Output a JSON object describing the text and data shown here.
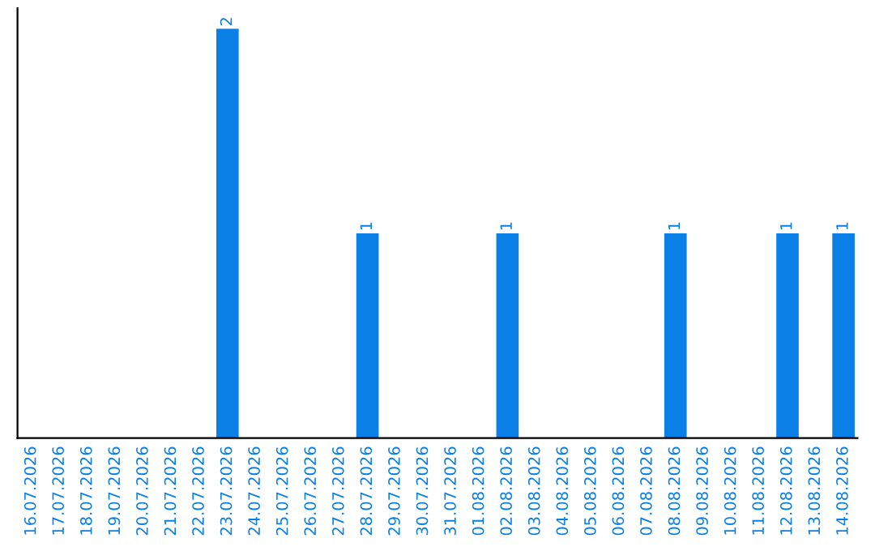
{
  "chart_data": {
    "type": "bar",
    "categories": [
      "16.07.2026",
      "17.07.2026",
      "18.07.2026",
      "19.07.2026",
      "20.07.2026",
      "21.07.2026",
      "22.07.2026",
      "23.07.2026",
      "24.07.2026",
      "25.07.2026",
      "26.07.2026",
      "27.07.2026",
      "28.07.2026",
      "29.07.2026",
      "30.07.2026",
      "31.07.2026",
      "01.08.2026",
      "02.08.2026",
      "03.08.2026",
      "04.08.2026",
      "05.08.2026",
      "06.08.2026",
      "07.08.2026",
      "08.08.2026",
      "09.08.2026",
      "10.08.2026",
      "11.08.2026",
      "12.08.2026",
      "13.08.2026",
      "14.08.2026"
    ],
    "values": [
      0,
      0,
      0,
      0,
      0,
      0,
      0,
      2,
      0,
      0,
      0,
      0,
      1,
      0,
      0,
      0,
      0,
      1,
      0,
      0,
      0,
      0,
      0,
      1,
      0,
      0,
      0,
      1,
      0,
      1
    ],
    "value_labels": [
      null,
      null,
      null,
      null,
      null,
      null,
      null,
      "2",
      null,
      null,
      null,
      null,
      "1",
      null,
      null,
      null,
      null,
      "1",
      null,
      null,
      null,
      null,
      null,
      "1",
      null,
      null,
      null,
      "1",
      null,
      "1"
    ],
    "color": "#0a80e6",
    "tick_labels": "x",
    "grid": false,
    "legend": false
  }
}
